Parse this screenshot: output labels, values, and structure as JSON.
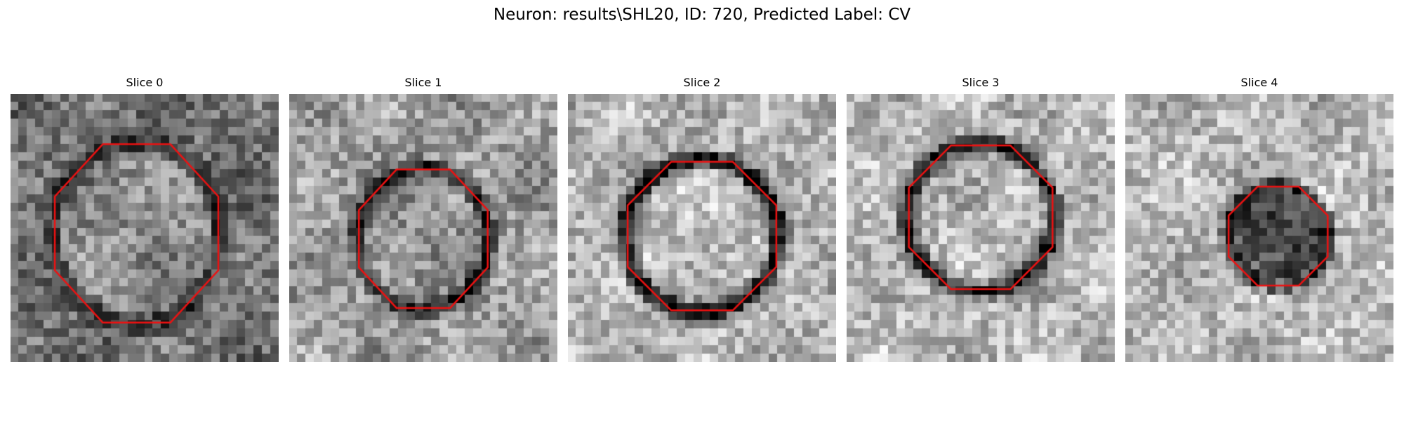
{
  "figure": {
    "title": "Neuron: results\\SHL20, ID: 720, Predicted Label: CV"
  },
  "slices": [
    {
      "title": "Slice 0",
      "contour_color": "#ee1111",
      "center": [
        0.47,
        0.52
      ],
      "radius": [
        0.33,
        0.36
      ],
      "ring_strength": 0.25,
      "inner_tone": 0.55,
      "background_tone": 0.45,
      "seed": 11
    },
    {
      "title": "Slice 1",
      "contour_color": "#ee1111",
      "center": [
        0.5,
        0.54
      ],
      "radius": [
        0.26,
        0.28
      ],
      "ring_strength": 0.5,
      "inner_tone": 0.58,
      "background_tone": 0.62,
      "seed": 23
    },
    {
      "title": "Slice 2",
      "contour_color": "#ee1111",
      "center": [
        0.5,
        0.53
      ],
      "radius": [
        0.3,
        0.3
      ],
      "ring_strength": 0.7,
      "inner_tone": 0.75,
      "background_tone": 0.7,
      "seed": 37
    },
    {
      "title": "Slice 3",
      "contour_color": "#ee1111",
      "center": [
        0.5,
        0.46
      ],
      "radius": [
        0.29,
        0.29
      ],
      "ring_strength": 0.65,
      "inner_tone": 0.72,
      "background_tone": 0.72,
      "seed": 41
    },
    {
      "title": "Slice 4",
      "contour_color": "#ee1111",
      "center": [
        0.57,
        0.53
      ],
      "radius": [
        0.2,
        0.2
      ],
      "ring_strength": 0.6,
      "inner_tone": 0.3,
      "background_tone": 0.72,
      "seed": 53
    }
  ]
}
